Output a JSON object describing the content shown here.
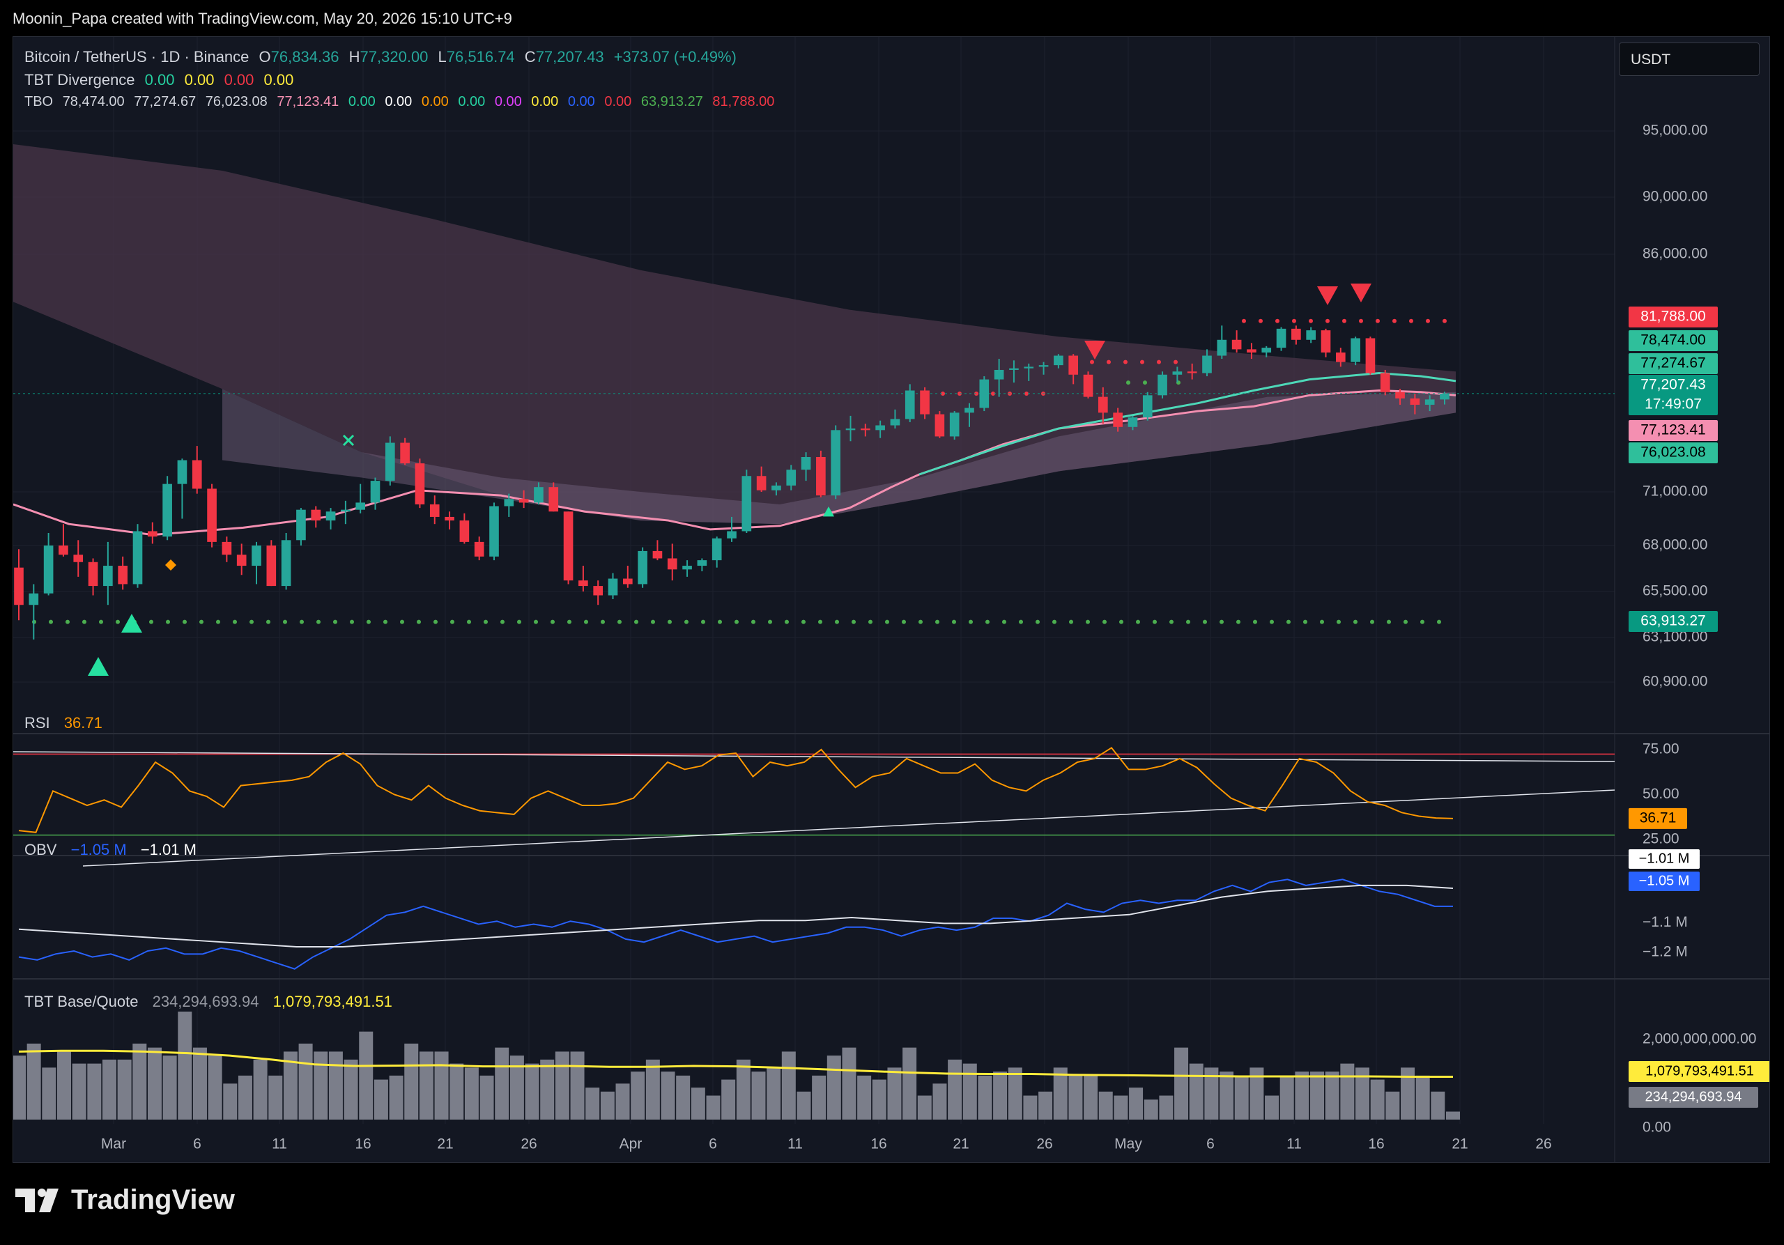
{
  "attribution": "Moonin_Papa created with TradingView.com, May 20, 2026 15:10 UTC+9",
  "brand": "TradingView",
  "currency": "USDT",
  "legend": {
    "symbol": "Bitcoin / TetherUS · 1D · Binance",
    "o_label": "O",
    "o": "76,834.36",
    "h_label": "H",
    "h": "77,320.00",
    "l_label": "L",
    "l": "76,516.74",
    "c_label": "C",
    "c": "77,207.43",
    "change": "+373.07 (+0.49%)",
    "divergence_name": "TBT Divergence",
    "divergence_values": [
      "0.00",
      "0.00",
      "0.00",
      "0.00"
    ],
    "tbo_name": "TBO",
    "tbo_values": [
      "78,474.00",
      "77,274.67",
      "76,023.08",
      "77,123.41",
      "0.00",
      "0.00",
      "0.00",
      "0.00",
      "0.00",
      "0.00",
      "0.00",
      "0.00",
      "63,913.27",
      "81,788.00"
    ]
  },
  "colors": {
    "up": "#26a69a",
    "down": "#f23645",
    "accent": "#089981",
    "rsi": "#ff9800",
    "obv": "#2962ff",
    "volume_ma": "#ffeb3b",
    "pink_ma": "#f48fb1"
  },
  "price_axis_labels": [
    "95,000.00",
    "90,000.00",
    "86,000.00",
    "71,000.00",
    "68,000.00",
    "65,500.00",
    "63,100.00",
    "60,900.00"
  ],
  "price_tags": [
    {
      "value": 81788.0,
      "text": "81,788.00",
      "bg": "#f23645",
      "fg": "#ffffff"
    },
    {
      "value": 78474.0,
      "text": "78,474.00",
      "bg": "#2fbf9b",
      "fg": "#000000"
    },
    {
      "value": 77274.67,
      "text": "77,274.67",
      "bg": "#2fbf9b",
      "fg": "#000000"
    },
    {
      "value": 77207.43,
      "text": "77,207.43",
      "bg": "#089981",
      "fg": "#ffffff"
    },
    {
      "value": 77123.41,
      "text": "77,123.41",
      "bg": "#f48fb1",
      "fg": "#000000"
    },
    {
      "value": 76023.08,
      "text": "76,023.08",
      "bg": "#2fbf9b",
      "fg": "#000000"
    },
    {
      "value": 63913.27,
      "text": "63,913.27",
      "bg": "#089981",
      "fg": "#ffffff"
    }
  ],
  "countdown": "17:49:07",
  "rsi": {
    "name": "RSI",
    "value": "36.71",
    "axis_labels": [
      "75.00",
      "50.00",
      "25.00"
    ],
    "tag": "36.71"
  },
  "obv": {
    "name": "OBV",
    "value1": "−1.05 M",
    "value2": "−1.01 M",
    "axis_labels": [
      "−1.1 M",
      "−1.2 M"
    ],
    "tags": [
      "−1.01 M",
      "−1.05 M"
    ]
  },
  "base_quote": {
    "name": "TBT Base/Quote",
    "value1": "234,294,693.94",
    "value2": "1,079,793,491.51",
    "axis_labels": [
      "2,000,000,000.00",
      "0.00"
    ],
    "tags": [
      "1,079,793,491.51",
      "234,294,693.94"
    ]
  },
  "chart_data": {
    "type": "candlestick",
    "symbol": "Bitcoin / TetherUS",
    "interval": "1D",
    "x_ticks": [
      "Mar",
      "6",
      "11",
      "16",
      "21",
      "26",
      "Apr",
      "6",
      "11",
      "16",
      "21",
      "26",
      "May",
      "6",
      "11",
      "16",
      "21",
      "26"
    ],
    "ohlc": [
      [
        66800,
        67800,
        64000,
        64800
      ],
      [
        64800,
        65900,
        63000,
        65400
      ],
      [
        65400,
        68700,
        65300,
        68000
      ],
      [
        68000,
        69200,
        67400,
        67500
      ],
      [
        67500,
        68300,
        66300,
        67100
      ],
      [
        67100,
        67300,
        65300,
        65800
      ],
      [
        65800,
        68200,
        64800,
        66900
      ],
      [
        66900,
        67400,
        65600,
        65900
      ],
      [
        65900,
        69200,
        65700,
        68800
      ],
      [
        68800,
        69300,
        68100,
        68500
      ],
      [
        68500,
        72000,
        68300,
        71500
      ],
      [
        71500,
        73100,
        69500,
        73000
      ],
      [
        73000,
        73900,
        70900,
        71200
      ],
      [
        71200,
        71500,
        67900,
        68200
      ],
      [
        68200,
        68500,
        67100,
        67500
      ],
      [
        67500,
        68100,
        66400,
        66900
      ],
      [
        66900,
        68200,
        65900,
        68000
      ],
      [
        68000,
        68300,
        65800,
        65800
      ],
      [
        65800,
        68700,
        65600,
        68300
      ],
      [
        68300,
        70100,
        68000,
        70000
      ],
      [
        70000,
        70200,
        69000,
        69400
      ],
      [
        69400,
        70100,
        68900,
        69900
      ],
      [
        69900,
        70500,
        69200,
        70000
      ],
      [
        70000,
        71500,
        69800,
        70400
      ],
      [
        70400,
        71900,
        70000,
        71700
      ],
      [
        71700,
        74500,
        71400,
        74100
      ],
      [
        74100,
        74400,
        72700,
        72800
      ],
      [
        72800,
        73100,
        70100,
        70300
      ],
      [
        70300,
        70800,
        69200,
        69600
      ],
      [
        69600,
        69900,
        68900,
        69400
      ],
      [
        69400,
        69800,
        68100,
        68200
      ],
      [
        68200,
        68500,
        67200,
        67400
      ],
      [
        67400,
        70400,
        67200,
        70200
      ],
      [
        70200,
        70900,
        69600,
        70600
      ],
      [
        70600,
        71100,
        70100,
        70400
      ],
      [
        70400,
        71600,
        70300,
        71300
      ],
      [
        71300,
        71600,
        69900,
        69900
      ],
      [
        69900,
        69900,
        65900,
        66100
      ],
      [
        66100,
        66900,
        65500,
        65800
      ],
      [
        65800,
        66100,
        64800,
        65300
      ],
      [
        65300,
        66500,
        65100,
        66200
      ],
      [
        66200,
        66900,
        65700,
        65900
      ],
      [
        65900,
        67900,
        65700,
        67700
      ],
      [
        67700,
        68300,
        67200,
        67300
      ],
      [
        67300,
        68100,
        66100,
        66700
      ],
      [
        66700,
        67200,
        66300,
        66900
      ],
      [
        66900,
        67300,
        66600,
        67200
      ],
      [
        67200,
        68500,
        66800,
        68400
      ],
      [
        68400,
        69600,
        68200,
        68800
      ],
      [
        68800,
        72400,
        68700,
        72000
      ],
      [
        72000,
        72600,
        71000,
        71100
      ],
      [
        71100,
        71600,
        70800,
        71400
      ],
      [
        71400,
        72700,
        71100,
        72400
      ],
      [
        72400,
        73500,
        71700,
        73200
      ],
      [
        73200,
        73600,
        70700,
        70800
      ],
      [
        70800,
        75200,
        70600,
        74900
      ],
      [
        74900,
        75800,
        74200,
        75000
      ],
      [
        75000,
        75300,
        74500,
        74900
      ],
      [
        74900,
        75500,
        74400,
        75200
      ],
      [
        75200,
        76200,
        75000,
        75600
      ],
      [
        75600,
        77800,
        75400,
        77400
      ],
      [
        77400,
        77600,
        75600,
        75900
      ],
      [
        75900,
        76100,
        74400,
        74500
      ],
      [
        74500,
        76100,
        74300,
        76000
      ],
      [
        76000,
        76600,
        75100,
        76300
      ],
      [
        76300,
        78300,
        76100,
        78100
      ],
      [
        78100,
        79400,
        77000,
        78700
      ],
      [
        78700,
        79300,
        77900,
        78800
      ],
      [
        78800,
        79100,
        78000,
        78900
      ],
      [
        78900,
        79200,
        78400,
        79000
      ],
      [
        79000,
        79700,
        78800,
        79600
      ],
      [
        79600,
        79700,
        77800,
        78400
      ],
      [
        78400,
        78600,
        76900,
        77000
      ],
      [
        77000,
        77600,
        75300,
        76000
      ],
      [
        76000,
        76300,
        74800,
        75100
      ],
      [
        75100,
        75800,
        74900,
        75700
      ],
      [
        75700,
        77300,
        75500,
        77100
      ],
      [
        77100,
        78600,
        76900,
        78400
      ],
      [
        78400,
        78900,
        77900,
        78600
      ],
      [
        78600,
        79100,
        78100,
        78500
      ],
      [
        78500,
        80000,
        78300,
        79600
      ],
      [
        79600,
        81500,
        79400,
        80600
      ],
      [
        80600,
        81200,
        79800,
        80000
      ],
      [
        80000,
        80400,
        79400,
        79800
      ],
      [
        79800,
        80200,
        79500,
        80100
      ],
      [
        80100,
        81400,
        79900,
        81300
      ],
      [
        81300,
        81500,
        80300,
        80600
      ],
      [
        80600,
        81400,
        80400,
        81200
      ],
      [
        81200,
        81300,
        79500,
        79800
      ],
      [
        79800,
        80100,
        78900,
        79200
      ],
      [
        79200,
        80800,
        79000,
        80700
      ],
      [
        80700,
        80800,
        78400,
        78500
      ],
      [
        78500,
        78700,
        77100,
        77300
      ],
      [
        77300,
        77500,
        76500,
        76900
      ],
      [
        76900,
        77200,
        75900,
        76500
      ],
      [
        76500,
        77100,
        76100,
        76834
      ],
      [
        76834,
        77320,
        76517,
        77207
      ]
    ],
    "price_axis": {
      "min": 60000,
      "max": 97000
    },
    "lines": {
      "tbo_fast_last": 78474.0,
      "tbo_mid_last": 77274.67,
      "tbo_slow_last": 76023.08,
      "pink_ma_last": 77123.41,
      "support_level": 63913.27,
      "resistance_level": 81788.0
    },
    "rsi": {
      "last": 36.71,
      "ylim": [
        20,
        80
      ],
      "levels": [
        75,
        50,
        25
      ]
    },
    "obv": {
      "last": -1.05,
      "signal_last": -1.01,
      "unit": "M"
    },
    "base_quote": {
      "last_volume": 234294693.94,
      "ma_last": 1079793491.51
    }
  }
}
